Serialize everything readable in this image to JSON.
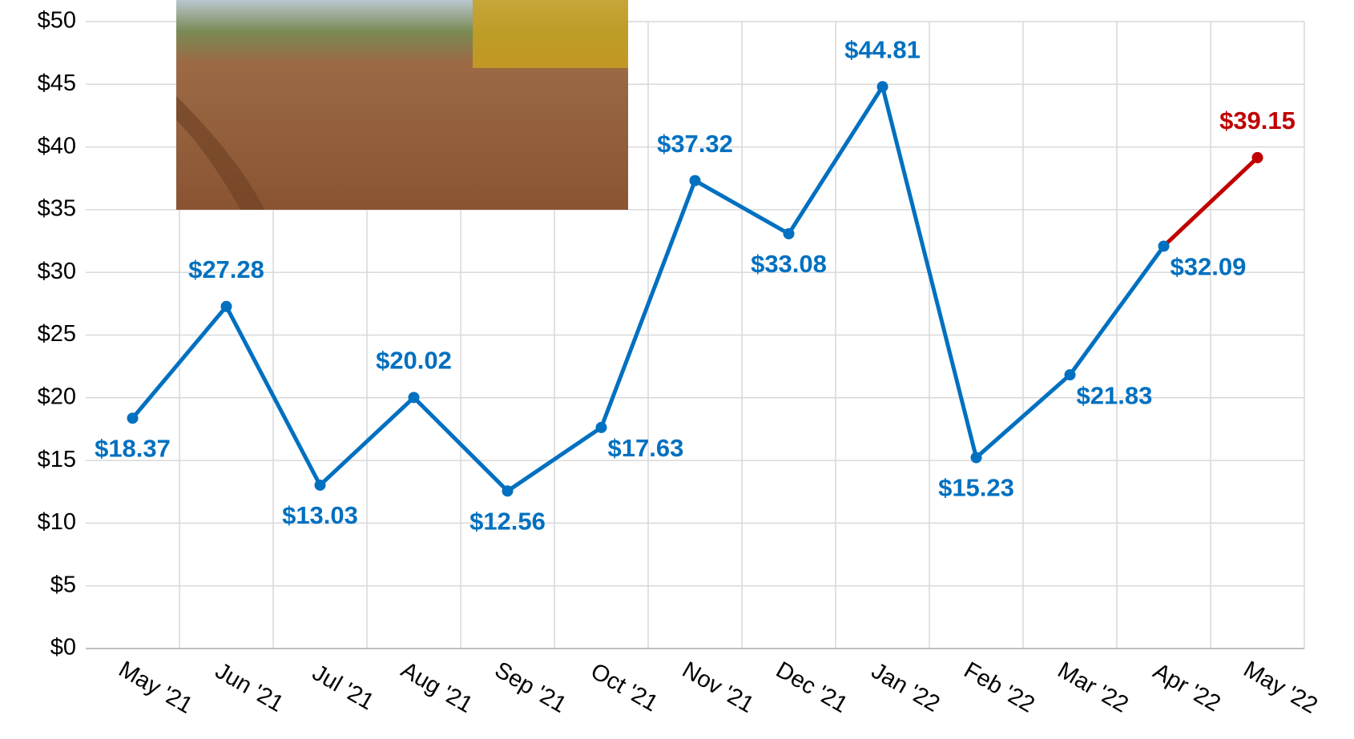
{
  "chart_data": {
    "type": "line",
    "categories": [
      "May '21",
      "Jun '21",
      "Jul '21",
      "Aug '21",
      "Sep '21",
      "Oct '21",
      "Nov '21",
      "Dec '21",
      "Jan '22",
      "Feb '22",
      "Mar '22",
      "Apr '22",
      "May '22"
    ],
    "values": [
      18.37,
      27.28,
      13.03,
      20.02,
      12.56,
      17.63,
      37.32,
      33.08,
      44.81,
      15.23,
      21.83,
      32.09,
      39.15
    ],
    "value_labels": [
      "$18.37",
      "$27.28",
      "$13.03",
      "$20.02",
      "$12.56",
      "$17.63",
      "$37.32",
      "$33.08",
      "$44.81",
      "$15.23",
      "$21.83",
      "$32.09",
      "$39.15"
    ],
    "colors": [
      "#0070c0",
      "#0070c0",
      "#0070c0",
      "#0070c0",
      "#0070c0",
      "#0070c0",
      "#0070c0",
      "#0070c0",
      "#0070c0",
      "#0070c0",
      "#0070c0",
      "#0070c0",
      "#c00000"
    ],
    "ylim": [
      0,
      50
    ],
    "yticks": [
      {
        "value": 0,
        "label": "$0"
      },
      {
        "value": 5,
        "label": "$5"
      },
      {
        "value": 10,
        "label": "$10"
      },
      {
        "value": 15,
        "label": "$15"
      },
      {
        "value": 20,
        "label": "$20"
      },
      {
        "value": 25,
        "label": "$25"
      },
      {
        "value": 30,
        "label": "$30"
      },
      {
        "value": 35,
        "label": "$35"
      },
      {
        "value": 40,
        "label": "$40"
      },
      {
        "value": 45,
        "label": "$45"
      },
      {
        "value": 50,
        "label": "$50"
      }
    ],
    "grid": true
  }
}
